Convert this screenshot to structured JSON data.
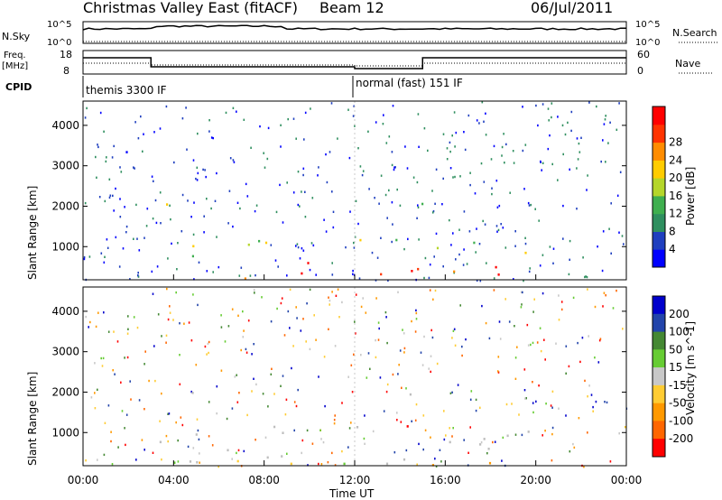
{
  "header": {
    "title": "Christmas Valley East (fitACF)",
    "beam": "Beam 12",
    "date": "06/Jul/2011"
  },
  "noise_panel": {
    "left_label": "N.Sky",
    "left_ticks": [
      "10^5",
      "10^0"
    ],
    "right_ticks": [
      "10^5",
      "10^0"
    ],
    "right_label": "N.Search"
  },
  "freq_panel": {
    "left_label_line1": "Freq.",
    "left_label_line2": "[MHz]",
    "left_ticks": [
      "18",
      "8"
    ],
    "right_ticks": [
      "60",
      "0"
    ],
    "right_label": "Nave"
  },
  "cpid_panel": {
    "label": "CPID",
    "mode1": "themis 3300 IF",
    "mode2": "normal (fast) 151 IF"
  },
  "colors": {
    "power": [
      "#0000ff",
      "#1f3fbf",
      "#2f8f5f",
      "#3faf4f",
      "#b5d62a",
      "#ffcc00",
      "#ff8c00",
      "#ff3300",
      "#ff0000"
    ],
    "velocity": [
      "#0000cc",
      "#2244aa",
      "#448833",
      "#66cc33",
      "#c8c8c8",
      "#ffcc33",
      "#ff9900",
      "#ff6600",
      "#ff0000"
    ],
    "ground": "#bebebe"
  },
  "chart_data": [
    {
      "type": "heatmap",
      "name": "power",
      "ylabel": "Slant Range [km]",
      "yticks": [
        "1000",
        "2000",
        "3000",
        "4000"
      ],
      "ylim": [
        180,
        4600
      ],
      "xlim_hours": [
        0,
        24
      ],
      "colorbar_label": "Power [dB]",
      "colorbar_ticks": [
        "4",
        "8",
        "12",
        "16",
        "20",
        "24",
        "28"
      ],
      "colorbar_range": [
        0,
        32
      ],
      "regions": [
        {
          "t": [
            3.5,
            5.0
          ],
          "r": [
            1700,
            2300
          ],
          "level": 0.6
        },
        {
          "t": [
            14.0,
            15.5
          ],
          "r": [
            1600,
            2400
          ],
          "level": 0.55
        },
        {
          "t": [
            0.5,
            2.0
          ],
          "r": [
            2900,
            3500
          ],
          "level": 0.1
        },
        {
          "t": [
            2.8,
            9.0
          ],
          "r": [
            500,
            1200
          ],
          "level": 0.5
        },
        {
          "t": [
            5.0,
            10.0
          ],
          "r": [
            200,
            700
          ],
          "level": 0.9
        },
        {
          "t": [
            11.0,
            21.5
          ],
          "r": [
            800,
            1200
          ],
          "level": 0.45
        },
        {
          "t": [
            13.0,
            20.5
          ],
          "r": [
            300,
            1000
          ],
          "level": 0.95
        }
      ]
    },
    {
      "type": "heatmap",
      "name": "velocity",
      "ylabel": "Slant Range [km]",
      "xlabel": "Time UT",
      "xticks": [
        "00:00",
        "04:00",
        "08:00",
        "12:00",
        "16:00",
        "20:00",
        "00:00"
      ],
      "yticks": [
        "1000",
        "2000",
        "3000",
        "4000"
      ],
      "ylim": [
        180,
        4600
      ],
      "xlim_hours": [
        0,
        24
      ],
      "colorbar_label": "Velocity [m s^-1]",
      "colorbar_ticks": [
        "200",
        "100",
        "50",
        "15",
        "-15",
        "-50",
        "-100",
        "-200"
      ],
      "regions": [
        {
          "t": [
            3.0,
            21.5
          ],
          "r": [
            250,
            1200
          ],
          "level": "ground"
        },
        {
          "t": [
            3.0,
            12.0
          ],
          "r": [
            150,
            400
          ],
          "level": "green"
        },
        {
          "t": [
            12.0,
            21.5
          ],
          "r": [
            150,
            350
          ],
          "level": "orange"
        },
        {
          "t": [
            5.5,
            6.5
          ],
          "r": [
            1500,
            1900
          ],
          "level": "blue"
        },
        {
          "t": [
            14.0,
            15.5
          ],
          "r": [
            1600,
            2400
          ],
          "level": "ground"
        },
        {
          "t": [
            3.5,
            5.0
          ],
          "r": [
            1700,
            2300
          ],
          "level": "ground"
        }
      ]
    }
  ]
}
